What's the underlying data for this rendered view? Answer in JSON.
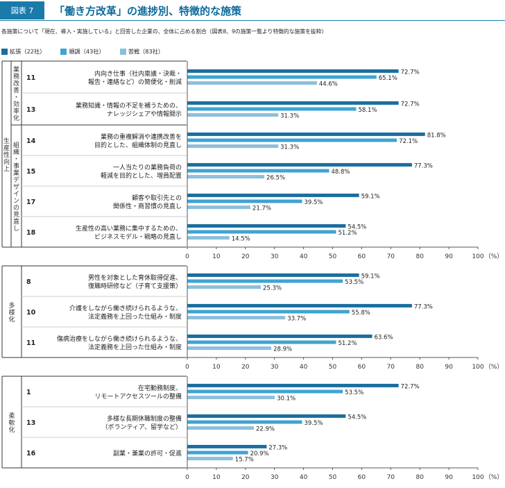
{
  "header": {
    "badge": "図表 7",
    "title": "「働き方改革」の進捗別、特徴的な施策"
  },
  "subtitle": "各施策について「現在、導入・実施している」と回答した企業の、全体に占める割合（図表8、9の施策一覧より特徴的な施策を抜粋）",
  "unit_label": "（%）",
  "colors": {
    "series": [
      "#1a6e9f",
      "#40a3d3",
      "#8cbfdb"
    ],
    "axis": "#555555",
    "text": "#333333"
  },
  "chart_data": {
    "type": "bar",
    "orientation": "horizontal",
    "xlim": [
      0,
      100
    ],
    "ticks": [
      0,
      10,
      20,
      30,
      40,
      50,
      60,
      70,
      80,
      90,
      100
    ],
    "legend_position": "top-left",
    "series": [
      {
        "name": "拡張（22社）"
      },
      {
        "name": "順調（43社）"
      },
      {
        "name": "苦戦（83社）"
      }
    ],
    "panels": [
      {
        "category": "生産性向上",
        "groups": [
          {
            "name": "業務改善・効率化",
            "items": [
              {
                "no": "11",
                "label": [
                  "内向き仕事（社内稟議・決裁・",
                  "報告・連絡など）の簡便化・削減"
                ],
                "values": [
                  72.7,
                  65.1,
                  44.6
                ]
              },
              {
                "no": "13",
                "label": [
                  "業務知識・情報の不足を補うための、",
                  "ナレッジシェアや情報開示"
                ],
                "values": [
                  72.7,
                  58.1,
                  31.3
                ]
              }
            ]
          },
          {
            "name": "組織・事業デザインの見直し",
            "items": [
              {
                "no": "14",
                "label": [
                  "業務の重複解消や連携改善を",
                  "目的とした、組織体制の見直し"
                ],
                "values": [
                  81.8,
                  72.1,
                  31.3
                ]
              },
              {
                "no": "15",
                "label": [
                  "一人当たりの業務負荷の",
                  "軽減を目的とした、増員配置"
                ],
                "values": [
                  77.3,
                  48.8,
                  26.5
                ]
              },
              {
                "no": "17",
                "label": [
                  "顧客や取引先との",
                  "関係性・商習慣の見直し"
                ],
                "values": [
                  59.1,
                  39.5,
                  21.7
                ]
              },
              {
                "no": "18",
                "label": [
                  "生産性の高い業務に集中するための、",
                  "ビジネスモデル・戦略の見直し"
                ],
                "values": [
                  54.5,
                  51.2,
                  14.5
                ]
              }
            ]
          }
        ]
      },
      {
        "category": "多様化",
        "groups": [
          {
            "name": "",
            "items": [
              {
                "no": "8",
                "label": [
                  "男性を対象とした育休取得促進、",
                  "復職時研修など（子育て支援策）"
                ],
                "values": [
                  59.1,
                  53.5,
                  25.3
                ]
              },
              {
                "no": "10",
                "label": [
                  "介護をしながら働き続けられるような、",
                  "法定義務を上回った仕組み・制度"
                ],
                "values": [
                  77.3,
                  55.8,
                  33.7
                ]
              },
              {
                "no": "11",
                "label": [
                  "傷病治療をしながら働き続けられるような、",
                  "法定義務を上回った仕組み・制度"
                ],
                "values": [
                  63.6,
                  51.2,
                  28.9
                ]
              }
            ]
          }
        ]
      },
      {
        "category": "柔軟化",
        "groups": [
          {
            "name": "",
            "items": [
              {
                "no": "1",
                "label": [
                  "在宅勤務制度、",
                  "リモートアクセスツールの整備"
                ],
                "values": [
                  72.7,
                  53.5,
                  30.1
                ]
              },
              {
                "no": "13",
                "label": [
                  "多様な長期休職制度の整備",
                  "（ボランティア、留学など）"
                ],
                "values": [
                  54.5,
                  39.5,
                  22.9
                ]
              },
              {
                "no": "16",
                "label": [
                  "副業・兼業の許可・促進"
                ],
                "values": [
                  27.3,
                  20.9,
                  15.7
                ]
              }
            ]
          }
        ]
      }
    ]
  }
}
